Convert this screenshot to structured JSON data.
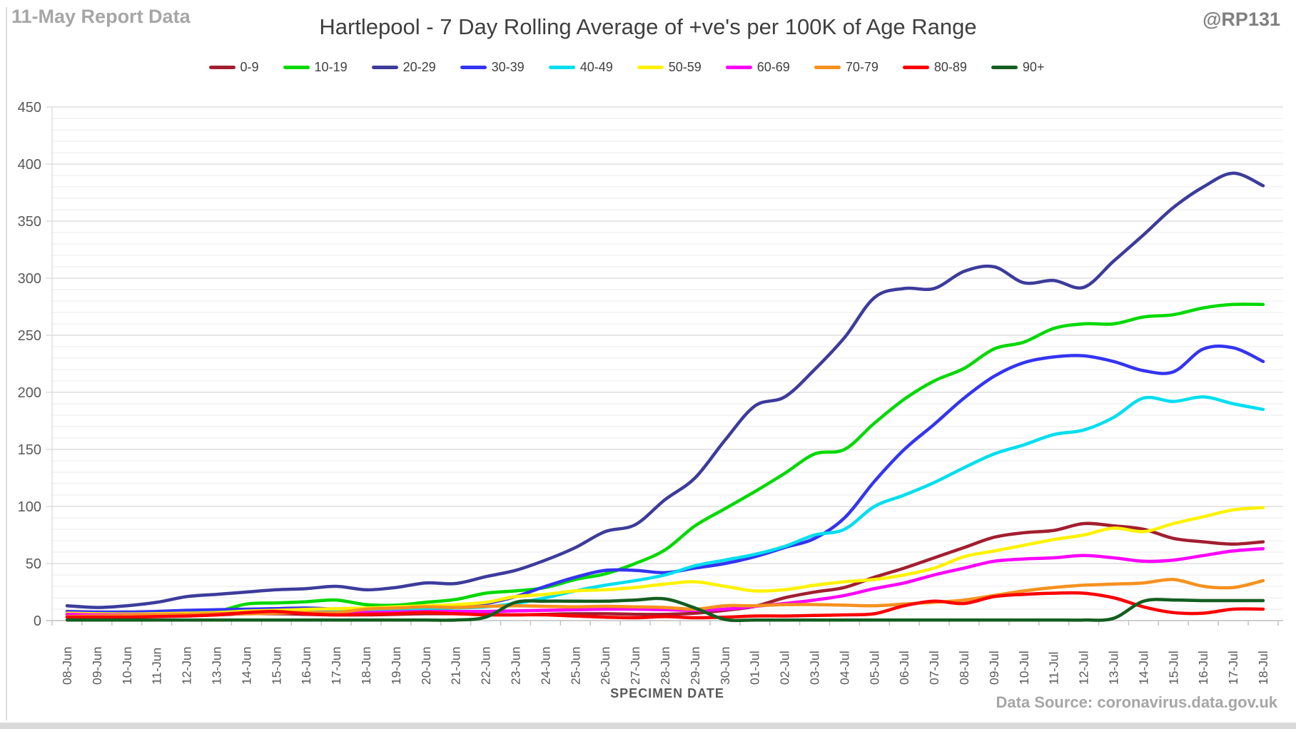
{
  "header": {
    "report_note": "11-May Report Data",
    "title": "Hartlepool - 7 Day Rolling Average of +ve's per 100K of Age Range",
    "handle": "@RP131"
  },
  "footer": {
    "source": "Data Source: coronavirus.data.gov.uk"
  },
  "colors": {
    "axis_text": "#595959",
    "title_text": "#3f3f3f",
    "muted_text": "#a6a6a6",
    "minor_grid": "#efefef",
    "major_grid": "#d8d8d8",
    "axis_line": "#bfbfbf"
  },
  "chart_data": {
    "type": "line",
    "title": "Hartlepool - 7 Day Rolling Average of +ve's per 100K of Age Range",
    "xlabel": "SPECIMEN DATE",
    "ylabel": "",
    "ylim": [
      0,
      450
    ],
    "y_tick_step": 50,
    "y_minor_step": 10,
    "grid": true,
    "legend_position": "top",
    "categories": [
      "08-Jun",
      "09-Jun",
      "10-Jun",
      "11-Jun",
      "12-Jun",
      "13-Jun",
      "14-Jun",
      "15-Jun",
      "16-Jun",
      "17-Jun",
      "18-Jun",
      "19-Jun",
      "20-Jun",
      "21-Jun",
      "22-Jun",
      "23-Jun",
      "24-Jun",
      "25-Jun",
      "26-Jun",
      "27-Jun",
      "28-Jun",
      "29-Jun",
      "30-Jun",
      "01-Jul",
      "02-Jul",
      "03-Jul",
      "04-Jul",
      "05-Jul",
      "06-Jul",
      "07-Jul",
      "08-Jul",
      "09-Jul",
      "10-Jul",
      "11-Jul",
      "12-Jul",
      "13-Jul",
      "14-Jul",
      "15-Jul",
      "16-Jul",
      "17-Jul",
      "18-Jul"
    ],
    "series": [
      {
        "name": "0-9",
        "color": "#a21e2f",
        "values": [
          4,
          3.5,
          3.5,
          4,
          4.5,
          5,
          6,
          6,
          5.5,
          5,
          5,
          5.5,
          6,
          6,
          5.5,
          5,
          5.5,
          6,
          6,
          5.5,
          5.5,
          6.5,
          9,
          12.5,
          20,
          25,
          29,
          38,
          46,
          55,
          64,
          73,
          77,
          79,
          85,
          83,
          80,
          72,
          69,
          67,
          69
        ]
      },
      {
        "name": "10-19",
        "color": "#00d900",
        "values": [
          4,
          4,
          5,
          6,
          7,
          8,
          14.5,
          15.5,
          16.5,
          18,
          14,
          13.5,
          16,
          18.5,
          24,
          26,
          29,
          36,
          41,
          50,
          62,
          83,
          98,
          113,
          129,
          146,
          150,
          173,
          194,
          210,
          221,
          238,
          244,
          256,
          260,
          260,
          266,
          268,
          274,
          277,
          277
        ]
      },
      {
        "name": "20-29",
        "color": "#3c3c9c",
        "values": [
          13,
          11.5,
          13,
          16,
          21,
          23,
          25,
          27,
          28,
          30,
          27,
          29,
          33,
          32.5,
          38.5,
          44,
          53,
          64,
          78,
          84,
          106,
          125,
          158,
          188,
          196,
          220,
          248,
          283,
          291,
          291,
          306,
          310,
          296,
          298,
          292,
          315,
          338,
          362,
          380,
          392,
          381
        ]
      },
      {
        "name": "30-39",
        "color": "#3434f2",
        "values": [
          8,
          7.5,
          7.5,
          8,
          9,
          9.5,
          10,
          10.5,
          11,
          10,
          9.5,
          10,
          11,
          12,
          15,
          21,
          30,
          38,
          44,
          44,
          42,
          46,
          50,
          56,
          64,
          72,
          90,
          122,
          150,
          172,
          195,
          214,
          226,
          231,
          232,
          227,
          219,
          218,
          238,
          239,
          227
        ]
      },
      {
        "name": "40-49",
        "color": "#00deef",
        "values": [
          6,
          5.5,
          5.5,
          6,
          6,
          6.5,
          7,
          7.5,
          8,
          9,
          9.5,
          10,
          10.5,
          11,
          12,
          15,
          20,
          26,
          31,
          35,
          40,
          48,
          53,
          58,
          65,
          75,
          80,
          100,
          110,
          121,
          134,
          146,
          154,
          163,
          167,
          178,
          195,
          192,
          196,
          190,
          185
        ]
      },
      {
        "name": "50-59",
        "color": "#fff200",
        "values": [
          6.5,
          6,
          5.8,
          6,
          6.5,
          7,
          8.3,
          9,
          9.8,
          10.4,
          11,
          12,
          13,
          14,
          16,
          21,
          23,
          26,
          27,
          29,
          32,
          34,
          30,
          26,
          27,
          31,
          34,
          36,
          40,
          46,
          56,
          61,
          66,
          71,
          75,
          81,
          78,
          85,
          91,
          97,
          99
        ]
      },
      {
        "name": "60-69",
        "color": "#fb00fb",
        "values": [
          5.5,
          5,
          5,
          5.2,
          5.5,
          6,
          6.5,
          7,
          7,
          7,
          7,
          7.5,
          8,
          8,
          8,
          8.5,
          9,
          9.5,
          10,
          10,
          9.5,
          9,
          10,
          12.5,
          15,
          18,
          22,
          28,
          33,
          40,
          46,
          52,
          54,
          55,
          57,
          55,
          52,
          53,
          57,
          61,
          63
        ]
      },
      {
        "name": "70-79",
        "color": "#f6911e",
        "values": [
          3.5,
          4,
          4.5,
          5,
          5.5,
          6,
          6,
          6.5,
          7,
          7,
          10,
          11,
          12,
          11.5,
          12.5,
          13,
          12.5,
          12,
          12.5,
          12,
          11.5,
          10,
          13,
          13,
          14,
          14,
          13.5,
          13,
          14.5,
          16,
          18,
          22,
          26,
          29,
          31,
          32,
          33,
          36,
          30,
          29,
          35
        ]
      },
      {
        "name": "80-89",
        "color": "#fb0000",
        "values": [
          3,
          3,
          3,
          3.5,
          4,
          5,
          7,
          8,
          6,
          5,
          5.5,
          6,
          7,
          6,
          5,
          5,
          5,
          4,
          3,
          2.5,
          3.5,
          2.5,
          3,
          4,
          4,
          4.5,
          5,
          6,
          13,
          17,
          15,
          21,
          23,
          24,
          24,
          20,
          12,
          7,
          6.5,
          10,
          10
        ]
      },
      {
        "name": "90+",
        "color": "#135e20",
        "values": [
          0.5,
          0.5,
          0.5,
          0.5,
          0.5,
          0.5,
          0.5,
          0.5,
          0.5,
          0.5,
          0.5,
          0.5,
          0.5,
          0.5,
          3,
          16,
          17,
          17,
          17,
          18,
          19,
          11,
          1,
          0.5,
          0.5,
          0.5,
          0.5,
          0.5,
          0.5,
          0.5,
          0.5,
          0.5,
          0.5,
          0.5,
          0.5,
          2,
          17,
          18,
          17.5,
          17.5,
          17.5
        ]
      }
    ]
  }
}
